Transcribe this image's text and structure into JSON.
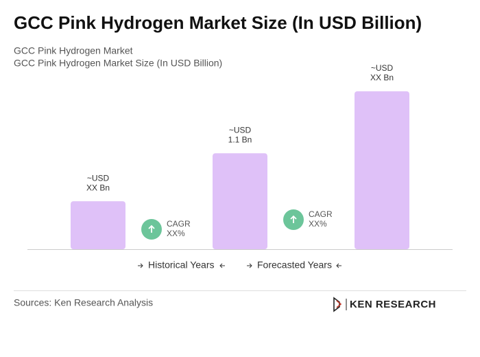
{
  "chart_data": {
    "type": "bar",
    "title": "GCC Pink Hydrogen Market Size (In USD Billion)",
    "subtitles": [
      "GCC Pink Hydrogen Market",
      "GCC Pink Hydrogen Market Size (In USD Billion)"
    ],
    "values": [
      0.55,
      1.1,
      1.81
    ],
    "value_labels": [
      [
        "~USD",
        "XX Bn"
      ],
      [
        "~USD",
        "1.1 Bn"
      ],
      [
        "~USD",
        "XX Bn"
      ]
    ],
    "color": "#dfc1f8",
    "cagr": [
      [
        "CAGR",
        "XX%"
      ],
      [
        "CAGR",
        "XX%"
      ]
    ],
    "cagr_color": "#6cc59a",
    "legend": [
      "Historical Years",
      "Forecasted Years"
    ]
  },
  "footer": {
    "source": "Sources: Ken Research Analysis",
    "logo": "KEN RESEARCH"
  }
}
